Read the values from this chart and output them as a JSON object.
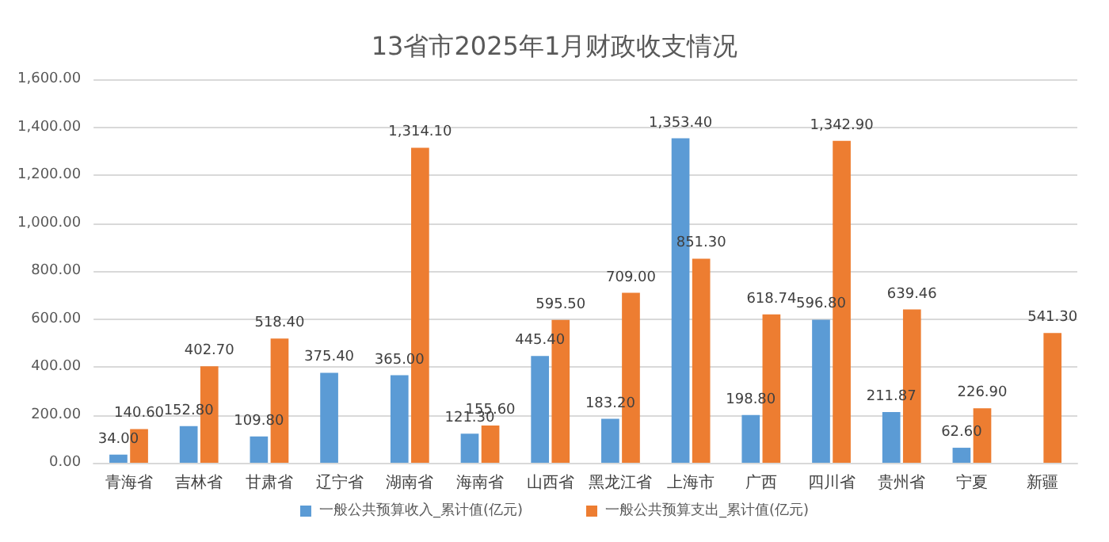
{
  "chart_data": {
    "type": "bar",
    "title": "13省市2025年1月财政收支情况",
    "categories": [
      "青海省",
      "吉林省",
      "甘肃省",
      "辽宁省",
      "湖南省",
      "海南省",
      "山西省",
      "黑龙江省",
      "上海市",
      "广西",
      "四川省",
      "贵州省",
      "宁夏",
      "新疆"
    ],
    "series": [
      {
        "name": "一般公共预算收入_累计值(亿元)",
        "color": "#5b9bd5",
        "values": [
          34.0,
          152.8,
          109.8,
          375.4,
          365.0,
          121.3,
          445.4,
          183.2,
          1353.4,
          198.8,
          596.8,
          211.87,
          62.6,
          null
        ],
        "value_labels": [
          "34.00",
          "152.80",
          "109.80",
          "375.40",
          "365.00",
          "121.30",
          "445.40",
          "183.20",
          "1,353.40",
          "198.80",
          "596.80",
          "211.87",
          "62.60",
          null
        ]
      },
      {
        "name": "一般公共预算支出_累计值(亿元)",
        "color": "#ed7d31",
        "values": [
          140.6,
          402.7,
          518.4,
          null,
          1314.1,
          155.6,
          595.5,
          709.0,
          851.3,
          618.74,
          1342.9,
          639.46,
          226.9,
          541.3
        ],
        "value_labels": [
          "140.60",
          "402.70",
          "518.40",
          null,
          "1,314.10",
          "155.60",
          "595.50",
          "709.00",
          "851.30",
          "618.74",
          "1,342.90",
          "639.46",
          "226.90",
          "541.30"
        ]
      }
    ],
    "ylim": [
      0,
      1600
    ],
    "yticks": [
      {
        "value": 0,
        "label": "0.00"
      },
      {
        "value": 200,
        "label": "200.00"
      },
      {
        "value": 400,
        "label": "400.00"
      },
      {
        "value": 600,
        "label": "600.00"
      },
      {
        "value": 800,
        "label": "800.00"
      },
      {
        "value": 1000,
        "label": "1,000.00"
      },
      {
        "value": 1200,
        "label": "1,200.00"
      },
      {
        "value": 1400,
        "label": "1,400.00"
      },
      {
        "value": 1600,
        "label": "1,600.00"
      }
    ],
    "grid": "y",
    "legend": "bottom"
  }
}
